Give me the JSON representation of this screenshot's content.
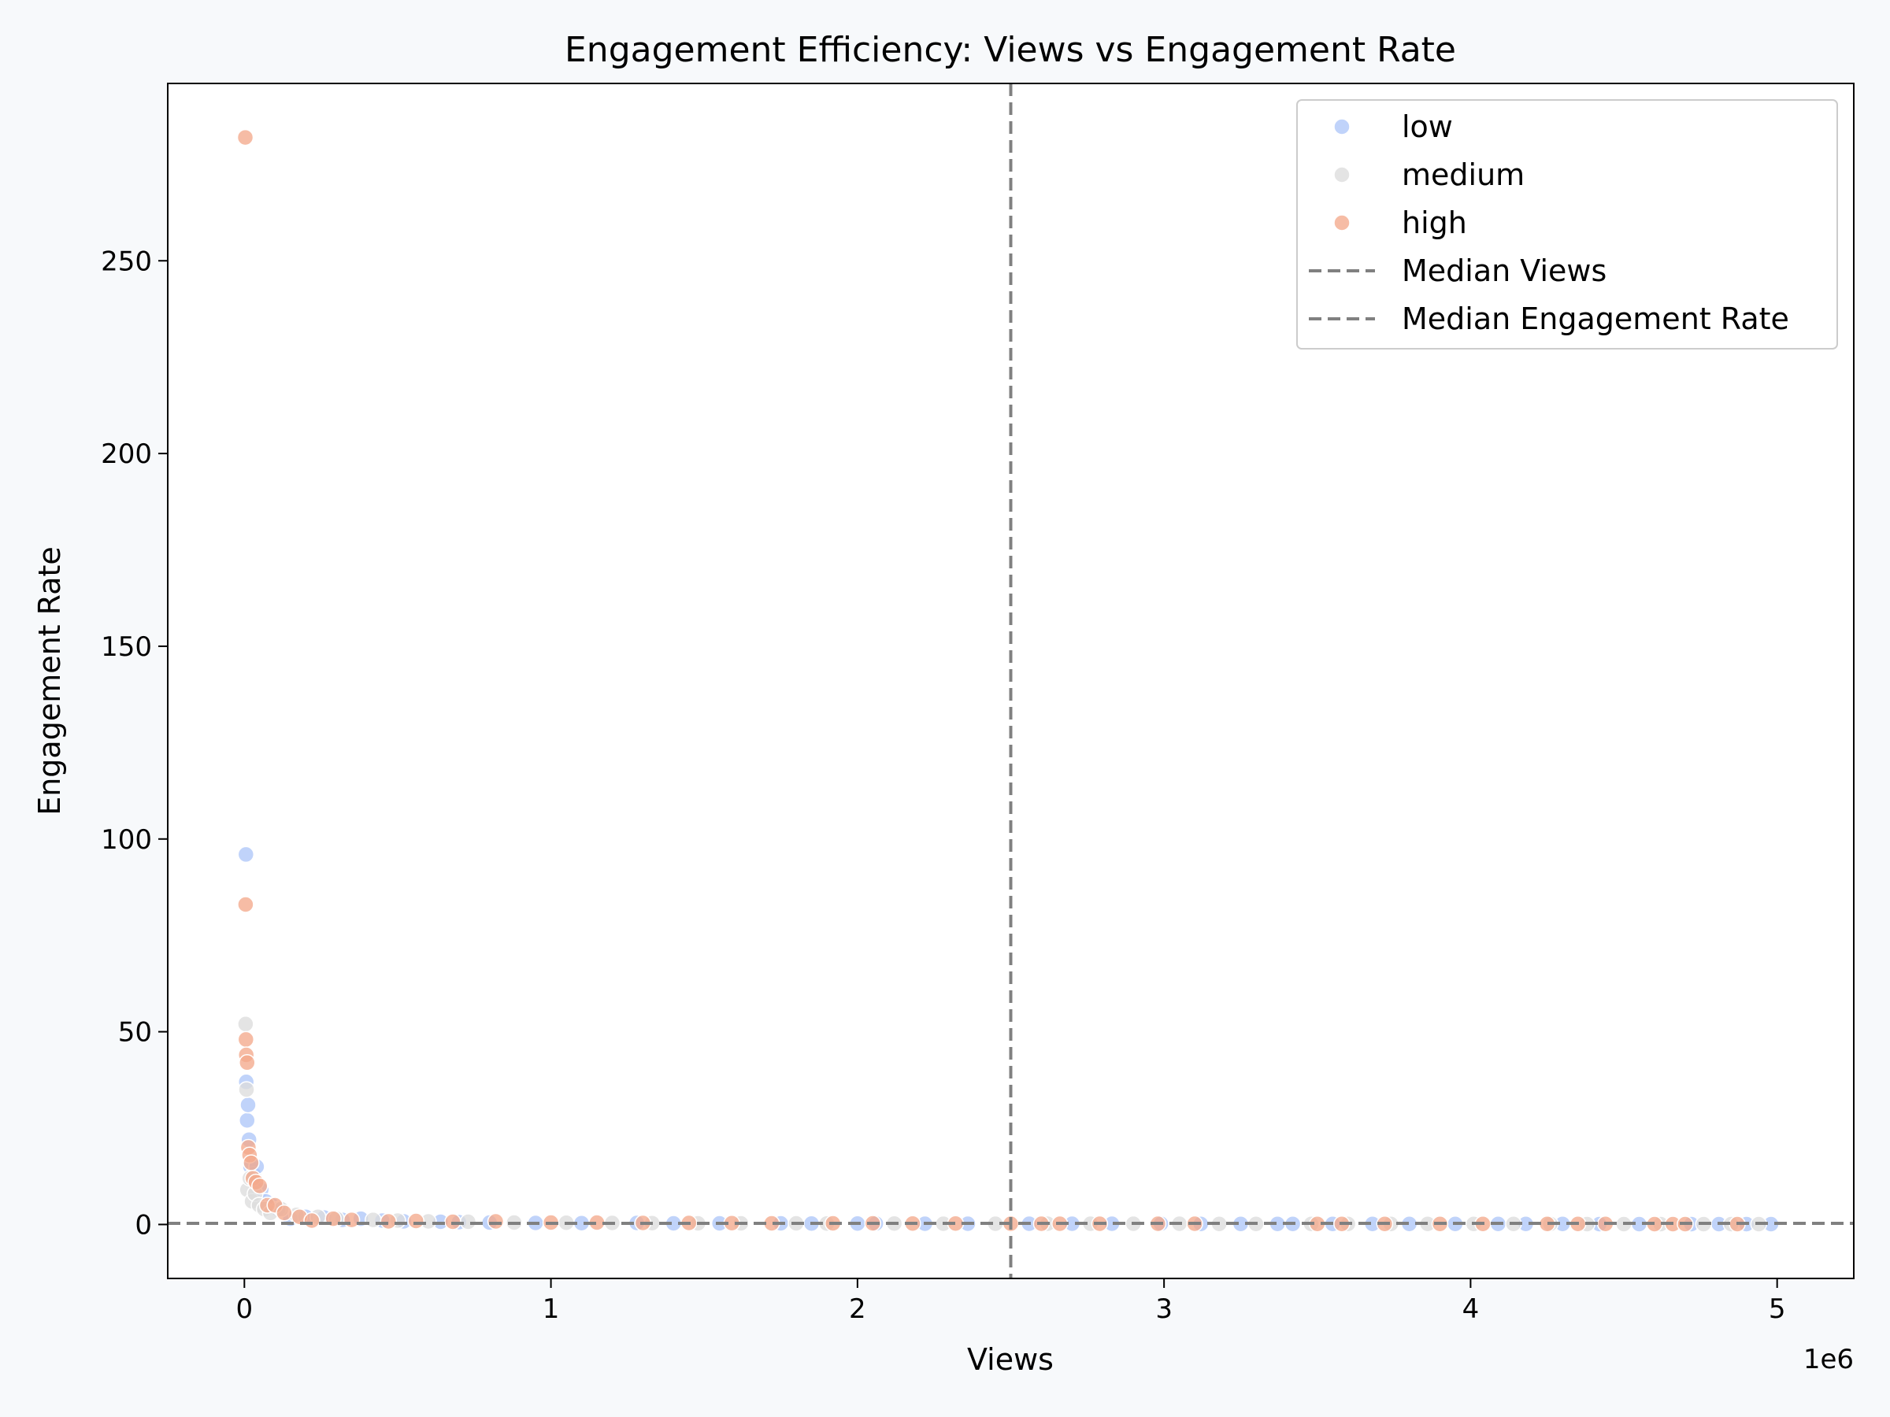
{
  "chart_data": {
    "type": "scatter",
    "title": "Engagement Efficiency: Views vs Engagement Rate",
    "xlabel": "Views",
    "ylabel": "Engagement Rate",
    "x_offset_label": "1e6",
    "xlim": [
      -250000,
      5250000
    ],
    "ylim": [
      -14,
      296
    ],
    "x_ticks": [
      0,
      1000000,
      2000000,
      3000000,
      4000000,
      5000000
    ],
    "x_tick_labels": [
      "0",
      "1",
      "2",
      "3",
      "4",
      "5"
    ],
    "y_ticks": [
      0,
      50,
      100,
      150,
      200,
      250
    ],
    "y_tick_labels": [
      "0",
      "50",
      "100",
      "150",
      "200",
      "250"
    ],
    "grid": false,
    "legend_position": "upper-right",
    "median_views": 2500000,
    "median_engagement_rate": 0.3,
    "colors": {
      "low": "#aec7f8",
      "medium": "#dcdcdc",
      "high": "#f4a98c",
      "median": "#808080"
    },
    "legend": [
      {
        "label": "low",
        "kind": "marker",
        "color_key": "low"
      },
      {
        "label": "medium",
        "kind": "marker",
        "color_key": "medium"
      },
      {
        "label": "high",
        "kind": "marker",
        "color_key": "high"
      },
      {
        "label": "Median Views",
        "kind": "dashed-line",
        "color_key": "median"
      },
      {
        "label": "Median Engagement Rate",
        "kind": "dashed-line",
        "color_key": "median"
      }
    ],
    "series": [
      {
        "name": "low",
        "points": [
          [
            5000,
            96
          ],
          [
            6000,
            37
          ],
          [
            9000,
            27
          ],
          [
            12000,
            31
          ],
          [
            15000,
            22
          ],
          [
            20000,
            15
          ],
          [
            30000,
            13
          ],
          [
            40000,
            15
          ],
          [
            55000,
            9
          ],
          [
            70000,
            6
          ],
          [
            90000,
            5
          ],
          [
            110000,
            4
          ],
          [
            150000,
            1.5
          ],
          [
            200000,
            2
          ],
          [
            260000,
            1.8
          ],
          [
            320000,
            1.2
          ],
          [
            380000,
            1.5
          ],
          [
            450000,
            1
          ],
          [
            520000,
            0.8
          ],
          [
            640000,
            0.7
          ],
          [
            700000,
            0.6
          ],
          [
            800000,
            0.5
          ],
          [
            950000,
            0.4
          ],
          [
            1100000,
            0.35
          ],
          [
            1280000,
            0.4
          ],
          [
            1400000,
            0.3
          ],
          [
            1550000,
            0.3
          ],
          [
            1750000,
            0.3
          ],
          [
            1850000,
            0.25
          ],
          [
            2000000,
            0.25
          ],
          [
            2060000,
            0.25
          ],
          [
            2220000,
            0.2
          ],
          [
            2360000,
            0.2
          ],
          [
            2560000,
            0.2
          ],
          [
            2700000,
            0.2
          ],
          [
            2830000,
            0.2
          ],
          [
            2990000,
            0.2
          ],
          [
            3120000,
            0.15
          ],
          [
            3250000,
            0.15
          ],
          [
            3370000,
            0.15
          ],
          [
            3420000,
            0.15
          ],
          [
            3550000,
            0.15
          ],
          [
            3680000,
            0.15
          ],
          [
            3800000,
            0.15
          ],
          [
            3950000,
            0.15
          ],
          [
            4090000,
            0.15
          ],
          [
            4180000,
            0.15
          ],
          [
            4300000,
            0.15
          ],
          [
            4420000,
            0.1
          ],
          [
            4550000,
            0.1
          ],
          [
            4720000,
            0.1
          ],
          [
            4810000,
            0.1
          ],
          [
            4900000,
            0.1
          ],
          [
            4980000,
            0.1
          ]
        ]
      },
      {
        "name": "medium",
        "points": [
          [
            4000,
            52
          ],
          [
            7000,
            35
          ],
          [
            10000,
            9
          ],
          [
            18000,
            12
          ],
          [
            25000,
            6
          ],
          [
            35000,
            8
          ],
          [
            48000,
            5
          ],
          [
            65000,
            4
          ],
          [
            85000,
            3
          ],
          [
            120000,
            4
          ],
          [
            170000,
            2.5
          ],
          [
            240000,
            2
          ],
          [
            300000,
            1.5
          ],
          [
            420000,
            1.2
          ],
          [
            500000,
            1
          ],
          [
            600000,
            0.8
          ],
          [
            730000,
            0.7
          ],
          [
            880000,
            0.5
          ],
          [
            1050000,
            0.45
          ],
          [
            1200000,
            0.4
          ],
          [
            1330000,
            0.35
          ],
          [
            1480000,
            0.3
          ],
          [
            1620000,
            0.3
          ],
          [
            1800000,
            0.3
          ],
          [
            1900000,
            0.25
          ],
          [
            2120000,
            0.25
          ],
          [
            2280000,
            0.2
          ],
          [
            2450000,
            0.2
          ],
          [
            2620000,
            0.2
          ],
          [
            2760000,
            0.2
          ],
          [
            2900000,
            0.2
          ],
          [
            3050000,
            0.2
          ],
          [
            3180000,
            0.15
          ],
          [
            3300000,
            0.15
          ],
          [
            3480000,
            0.15
          ],
          [
            3600000,
            0.15
          ],
          [
            3740000,
            0.15
          ],
          [
            3860000,
            0.15
          ],
          [
            4010000,
            0.15
          ],
          [
            4140000,
            0.15
          ],
          [
            4260000,
            0.15
          ],
          [
            4380000,
            0.1
          ],
          [
            4500000,
            0.1
          ],
          [
            4620000,
            0.1
          ],
          [
            4760000,
            0.1
          ],
          [
            4850000,
            0.1
          ],
          [
            4940000,
            0.1
          ]
        ]
      },
      {
        "name": "high",
        "points": [
          [
            3000,
            282
          ],
          [
            4000,
            83
          ],
          [
            5000,
            48
          ],
          [
            6000,
            44
          ],
          [
            9000,
            42
          ],
          [
            13000,
            20
          ],
          [
            17000,
            18
          ],
          [
            22000,
            16
          ],
          [
            28000,
            12
          ],
          [
            38000,
            11
          ],
          [
            50000,
            10
          ],
          [
            75000,
            5
          ],
          [
            100000,
            5
          ],
          [
            130000,
            3
          ],
          [
            180000,
            2
          ],
          [
            220000,
            1
          ],
          [
            290000,
            1.5
          ],
          [
            350000,
            1.2
          ],
          [
            470000,
            0.8
          ],
          [
            560000,
            0.9
          ],
          [
            680000,
            0.7
          ],
          [
            820000,
            0.8
          ],
          [
            1000000,
            0.5
          ],
          [
            1150000,
            0.5
          ],
          [
            1300000,
            0.4
          ],
          [
            1450000,
            0.4
          ],
          [
            1590000,
            0.35
          ],
          [
            1720000,
            0.3
          ],
          [
            1920000,
            0.3
          ],
          [
            2050000,
            0.3
          ],
          [
            2180000,
            0.25
          ],
          [
            2320000,
            0.25
          ],
          [
            2500000,
            0.2
          ],
          [
            2600000,
            0.2
          ],
          [
            2660000,
            0.2
          ],
          [
            2790000,
            0.2
          ],
          [
            2980000,
            0.2
          ],
          [
            3100000,
            0.2
          ],
          [
            3500000,
            0.15
          ],
          [
            3580000,
            0.15
          ],
          [
            3720000,
            0.15
          ],
          [
            3900000,
            0.15
          ],
          [
            4040000,
            0.15
          ],
          [
            4250000,
            0.15
          ],
          [
            4350000,
            0.15
          ],
          [
            4440000,
            0.15
          ],
          [
            4600000,
            0.1
          ],
          [
            4660000,
            0.1
          ],
          [
            4700000,
            0.1
          ],
          [
            4870000,
            0.1
          ]
        ]
      }
    ]
  }
}
